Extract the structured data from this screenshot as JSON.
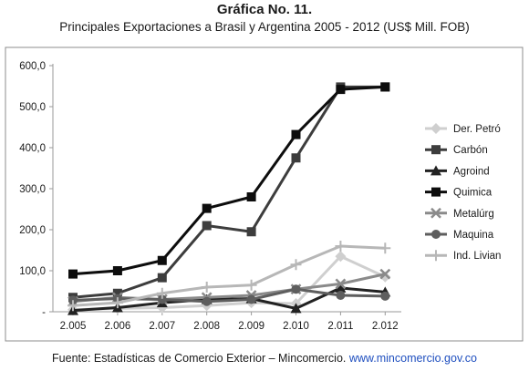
{
  "header": {
    "title": "Gráfica No. 11.",
    "subtitle": "Principales  Exportaciones  a  Brasil y Argentina  2005 - 2012   (US$ Mill. FOB)"
  },
  "footer": {
    "source": "Fuente: Estadísticas de Comercio Exterior – Mincomercio. ",
    "link": "www.mincomercio.gov.co"
  },
  "chart_data": {
    "type": "line",
    "title": "Gráfica No. 11.",
    "subtitle": "Principales  Exportaciones  a  Brasil y Argentina  2005 - 2012   (US$ Mill. FOB)",
    "xlabel": "",
    "ylabel": "",
    "x": [
      "2.005",
      "2.006",
      "2.007",
      "2.008",
      "2.009",
      "2.010",
      "2.011",
      "2.012"
    ],
    "ylim": [
      0,
      600
    ],
    "yticks": [
      0,
      100,
      200,
      300,
      400,
      500,
      600
    ],
    "ytick_labels": [
      "-",
      "100,0",
      "200,0",
      "300,0",
      "400,0",
      "500,0",
      "600,0"
    ],
    "grid": false,
    "legend_position": "right",
    "series": [
      {
        "name": "Der. Petró",
        "color": "#cfcfcf",
        "marker": "diamond",
        "values": [
          5,
          8,
          10,
          15,
          22,
          20,
          135,
          85
        ]
      },
      {
        "name": "Carbón",
        "color": "#3d3d3d",
        "marker": "square",
        "values": [
          35,
          45,
          83,
          210,
          195,
          375,
          548,
          548
        ]
      },
      {
        "name": "Agroind",
        "color": "#222222",
        "marker": "triangle",
        "values": [
          3,
          10,
          22,
          30,
          32,
          8,
          58,
          48
        ]
      },
      {
        "name": "Quimica",
        "color": "#0d0d0d",
        "marker": "square",
        "values": [
          92,
          100,
          125,
          252,
          280,
          432,
          542,
          548
        ]
      },
      {
        "name": "Metalúrg",
        "color": "#8a8a8a",
        "marker": "x",
        "values": [
          25,
          35,
          30,
          35,
          40,
          55,
          68,
          92
        ]
      },
      {
        "name": "Maquina",
        "color": "#5e5e5e",
        "marker": "circle",
        "values": [
          28,
          32,
          30,
          25,
          30,
          55,
          40,
          38
        ]
      },
      {
        "name": "Ind. Livian",
        "color": "#b7b7b7",
        "marker": "plus",
        "values": [
          15,
          22,
          45,
          60,
          65,
          115,
          160,
          155
        ]
      }
    ]
  }
}
